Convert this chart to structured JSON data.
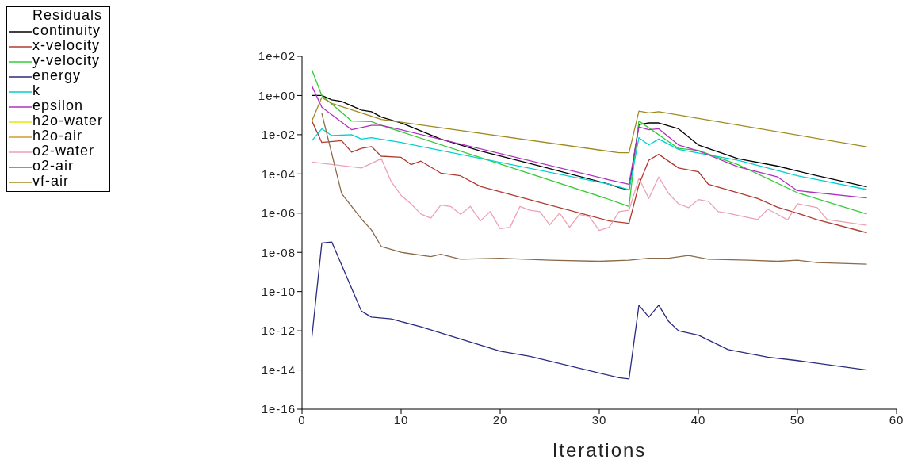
{
  "chart_data": {
    "type": "line",
    "legend_title": "Residuals",
    "xlabel": "Iterations",
    "log": "y",
    "grid": false,
    "legend": "top left",
    "marker": "none",
    "line_style": "solid",
    "xlim": [
      0,
      60
    ],
    "xticks": [
      0,
      10,
      20,
      30,
      40,
      50,
      60
    ],
    "ylim": [
      1e-16,
      100
    ],
    "yticks": [
      {
        "value": 1e-16,
        "label": "1e-16"
      },
      {
        "value": 1e-14,
        "label": "1e-14"
      },
      {
        "value": 1e-12,
        "label": "1e-12"
      },
      {
        "value": 1e-10,
        "label": "1e-10"
      },
      {
        "value": 1e-08,
        "label": "1e-08"
      },
      {
        "value": 1e-06,
        "label": "1e-06"
      },
      {
        "value": 0.0001,
        "label": "1e-04"
      },
      {
        "value": 0.01,
        "label": "1e-02"
      },
      {
        "value": 1,
        "label": "1e+00"
      },
      {
        "value": 100,
        "label": "1e+02"
      }
    ],
    "series": [
      {
        "name": "continuity",
        "color": "#000000",
        "x": [
          1,
          2,
          3,
          4,
          6,
          7,
          8,
          10,
          14,
          18,
          24,
          31,
          32,
          33,
          34,
          35,
          36,
          38,
          40,
          44,
          48,
          52,
          57
        ],
        "values": [
          1,
          1,
          0.6,
          0.5,
          0.18,
          0.15,
          0.08,
          0.04,
          0.006,
          0.0015,
          0.00025,
          3e-05,
          2e-05,
          1.5e-05,
          0.033,
          0.04,
          0.04,
          0.02,
          0.003,
          0.0006,
          0.00025,
          8e-05,
          2.2e-05
        ]
      },
      {
        "name": "x-velocity",
        "color": "#b03a2e",
        "x": [
          1,
          2,
          4,
          5,
          6,
          7,
          8,
          10,
          11,
          12,
          14,
          16,
          18,
          31,
          33,
          34,
          35,
          36,
          38,
          40,
          41,
          44,
          46,
          48,
          50,
          52,
          57
        ],
        "values": [
          0.05,
          0.004,
          0.005,
          0.0013,
          0.002,
          0.0025,
          0.0008,
          0.0007,
          0.0003,
          0.00045,
          0.00011,
          8e-05,
          2.3e-05,
          4e-07,
          3e-07,
          2.8e-05,
          0.0005,
          0.001,
          0.0002,
          0.00013,
          3e-05,
          1.1e-05,
          5.6e-06,
          2e-06,
          1e-06,
          4.6e-07,
          1e-07
        ]
      },
      {
        "name": "y-velocity",
        "color": "#33cc33",
        "x": [
          1,
          2,
          5,
          7,
          8,
          31,
          33,
          34,
          38,
          40,
          44,
          50,
          57
        ],
        "values": [
          20,
          1,
          0.05,
          0.047,
          0.03,
          5e-06,
          2.2e-06,
          0.05,
          0.002,
          0.0016,
          0.0003,
          1.1e-05,
          9e-07
        ]
      },
      {
        "name": "energy",
        "color": "#2a2a80",
        "x": [
          1,
          2,
          3,
          6,
          7,
          9,
          12,
          20,
          23,
          32,
          33,
          34,
          35,
          36,
          37,
          38,
          40,
          43,
          47,
          50,
          57
        ],
        "values": [
          5e-13,
          3e-08,
          3.4e-08,
          1e-11,
          5e-12,
          4e-12,
          1.6e-12,
          9e-14,
          5e-14,
          4e-15,
          3.5e-15,
          2e-11,
          5e-12,
          2e-11,
          3e-12,
          1e-12,
          6e-13,
          1.1e-13,
          4.5e-14,
          3e-14,
          1e-14
        ]
      },
      {
        "name": "k",
        "color": "#00d0d0",
        "x": [
          1,
          2,
          3,
          5,
          6,
          7,
          10,
          31,
          33,
          34,
          35,
          36,
          38,
          44,
          50,
          57
        ],
        "values": [
          0.005,
          0.02,
          0.009,
          0.01,
          0.006,
          0.007,
          0.004,
          3e-05,
          1.6e-05,
          0.007,
          0.003,
          0.006,
          0.0018,
          0.0005,
          8e-05,
          1.6e-05
        ]
      },
      {
        "name": "epsilon",
        "color": "#b030c0",
        "x": [
          1,
          2,
          5,
          7,
          8,
          10,
          31,
          33,
          34,
          35,
          36,
          38,
          40,
          44,
          48,
          50,
          57
        ],
        "values": [
          3,
          0.25,
          0.018,
          0.03,
          0.03,
          0.018,
          5e-05,
          3e-05,
          0.025,
          0.018,
          0.02,
          0.003,
          0.0015,
          0.00023,
          7e-05,
          1.4e-05,
          6e-06
        ]
      },
      {
        "name": "h2o-water",
        "color": "#e8e800"
      },
      {
        "name": "h2o-air",
        "color": "#d49a30"
      },
      {
        "name": "o2-water",
        "color": "#eea0b4",
        "x": [
          1,
          6,
          8,
          9,
          10,
          11,
          12,
          13,
          14,
          15,
          16,
          17,
          18,
          19,
          20,
          21,
          22,
          23,
          24,
          25,
          26,
          27,
          28,
          29,
          30,
          31,
          32,
          33,
          34,
          35,
          36,
          37,
          38,
          39,
          40,
          41,
          42,
          43,
          44,
          46,
          47,
          48,
          49,
          50,
          52,
          53,
          57
        ],
        "values": [
          0.0004,
          0.0002,
          0.0006,
          4e-05,
          8e-06,
          3e-06,
          9e-07,
          5.5e-07,
          2.6e-06,
          2.2e-06,
          8.7e-07,
          2.2e-06,
          4e-07,
          1.2e-06,
          1.6e-07,
          1.9e-07,
          2.2e-06,
          1.4e-06,
          1.2e-06,
          2.5e-07,
          1e-06,
          1.9e-07,
          8.7e-07,
          6.5e-07,
          1.3e-07,
          1.9e-07,
          1.2e-06,
          1.4e-06,
          6e-05,
          5.6e-06,
          7e-05,
          1e-05,
          3e-06,
          1.9e-06,
          4.9e-06,
          4e-06,
          1.2e-06,
          1e-06,
          7.6e-07,
          4.7e-07,
          1.6e-06,
          8.7e-07,
          4.5e-07,
          3e-06,
          1.9e-06,
          4.7e-07,
          2.4e-07
        ]
      },
      {
        "name": "o2-air",
        "color": "#8a6a4a",
        "x": [
          2,
          4,
          6,
          7,
          8,
          10,
          13,
          14,
          16,
          20,
          25,
          30,
          33,
          35,
          37,
          39,
          41,
          45,
          48,
          50,
          52,
          57
        ],
        "values": [
          0.12,
          1e-05,
          5e-07,
          1.4e-07,
          2e-08,
          1e-08,
          6e-09,
          8e-09,
          4.5e-09,
          5e-09,
          4e-09,
          3.5e-09,
          4e-09,
          5e-09,
          5e-09,
          7e-09,
          4.5e-09,
          4e-09,
          3.5e-09,
          4e-09,
          3e-09,
          2.5e-09
        ]
      },
      {
        "name": "vf-air",
        "color": "#a08a20",
        "x": [
          1,
          2,
          3,
          8,
          32,
          33,
          34,
          35,
          36,
          57
        ],
        "values": [
          0.05,
          0.8,
          0.4,
          0.06,
          0.0012,
          0.0012,
          0.16,
          0.13,
          0.15,
          0.0024
        ]
      }
    ]
  }
}
